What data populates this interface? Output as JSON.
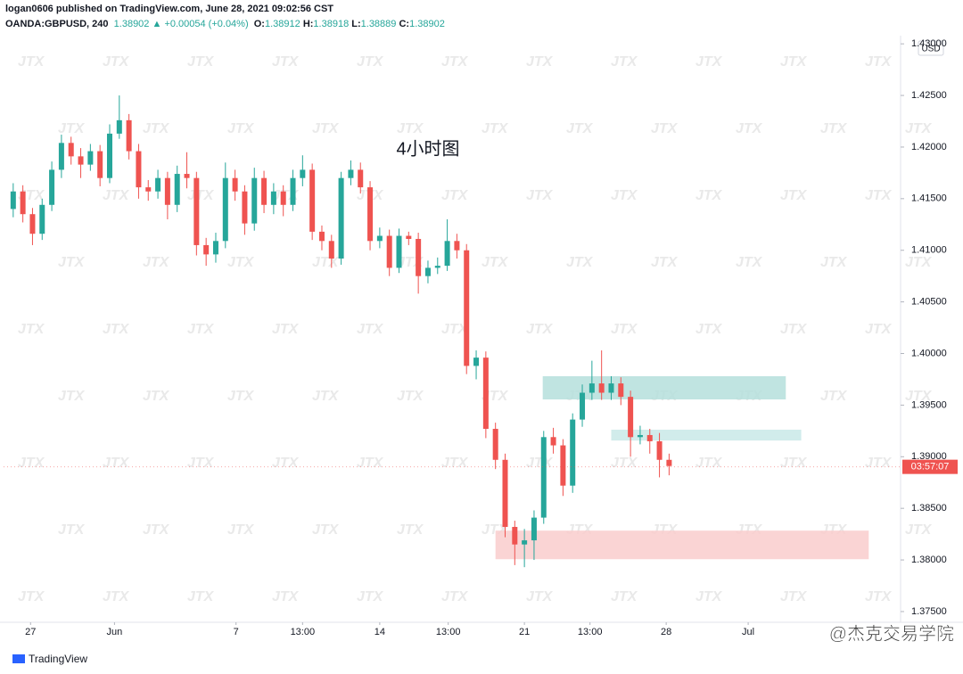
{
  "header": {
    "publisher": "logan0606 published on TradingView.com, June 28, 2021 09:02:56 CST",
    "symbol": "OANDA:GBPUSD, 240",
    "last": "1.38902",
    "change": "+0.00054 (+0.04%)",
    "open_label": "O:",
    "open": "1.38912",
    "high_label": "H:",
    "high": "1.38918",
    "low_label": "L:",
    "low": "1.38889",
    "close_label": "C:",
    "close": "1.38902"
  },
  "chart_data": {
    "type": "candlestick",
    "annotation": "4小时图",
    "currency": "USD",
    "watermark": "JTX",
    "up_color": "#26a69a",
    "down_color": "#ef5350",
    "xlim": [
      -1,
      92
    ],
    "xticks": [
      {
        "value": 1.8,
        "label": "27"
      },
      {
        "value": 10.5,
        "label": "Jun"
      },
      {
        "value": 23.1,
        "label": "7"
      },
      {
        "value": 30,
        "label": "13:00"
      },
      {
        "value": 38,
        "label": "14"
      },
      {
        "value": 45.1,
        "label": "13:00"
      },
      {
        "value": 53,
        "label": "21"
      },
      {
        "value": 59.8,
        "label": "13:00"
      },
      {
        "value": 67.7,
        "label": "28"
      },
      {
        "value": 76.2,
        "label": "Jul"
      }
    ],
    "ylim": [
      1.37396,
      1.43036
    ],
    "yticks": [
      {
        "value": 1.375,
        "label": "1.37500"
      },
      {
        "value": 1.38,
        "label": "1.38000"
      },
      {
        "value": 1.385,
        "label": "1.38500"
      },
      {
        "value": 1.39,
        "label": "1.39000"
      },
      {
        "value": 1.395,
        "label": "1.39500"
      },
      {
        "value": 1.4,
        "label": "1.40000"
      },
      {
        "value": 1.405,
        "label": "1.40500"
      },
      {
        "value": 1.41,
        "label": "1.41000"
      },
      {
        "value": 1.415,
        "label": "1.41500"
      },
      {
        "value": 1.42,
        "label": "1.42000"
      },
      {
        "value": 1.425,
        "label": "1.42500"
      },
      {
        "value": 1.43,
        "label": "1.43000"
      }
    ],
    "open": [
      1.414,
      1.4157,
      1.4135,
      1.4116,
      1.4144,
      1.4178,
      1.4204,
      1.4191,
      1.4183,
      1.4196,
      1.417,
      1.4213,
      1.4226,
      1.4196,
      1.4161,
      1.4157,
      1.417,
      1.4144,
      1.4174,
      1.417,
      1.4105,
      1.4096,
      1.4109,
      1.417,
      1.4157,
      1.4126,
      1.417,
      1.4144,
      1.4157,
      1.4144,
      1.417,
      1.4178,
      1.4118,
      1.4109,
      1.4092,
      1.417,
      1.4178,
      1.4161,
      1.4109,
      1.4114,
      1.4083,
      1.4114,
      1.4111,
      1.4075,
      1.4083,
      1.4085,
      1.4109,
      1.41,
      1.3988,
      1.3996,
      1.3927,
      1.3897,
      1.3832,
      1.3815,
      1.3819,
      1.3841,
      1.3919,
      1.3911,
      1.3872,
      1.3936,
      1.3962,
      1.3971,
      1.3962,
      1.3971,
      1.3958,
      1.3919,
      1.3921,
      1.3915,
      1.3897
    ],
    "high": [
      1.4165,
      1.4163,
      1.4141,
      1.415,
      1.4186,
      1.4212,
      1.421,
      1.4199,
      1.4203,
      1.4202,
      1.4222,
      1.425,
      1.4232,
      1.4203,
      1.4168,
      1.4178,
      1.4176,
      1.4182,
      1.4195,
      1.4176,
      1.4112,
      1.4117,
      1.4185,
      1.4178,
      1.4163,
      1.418,
      1.4177,
      1.4165,
      1.4163,
      1.4178,
      1.4192,
      1.4184,
      1.4124,
      1.4115,
      1.4176,
      1.4187,
      1.4185,
      1.4167,
      1.4122,
      1.412,
      1.4121,
      1.4118,
      1.4117,
      1.409,
      1.4093,
      1.413,
      1.4116,
      1.4106,
      1.4003,
      1.4002,
      1.3933,
      1.3903,
      1.3838,
      1.383,
      1.3848,
      1.3925,
      1.3928,
      1.3917,
      1.3942,
      1.397,
      1.3993,
      1.4003,
      1.3978,
      1.3977,
      1.3964,
      1.393,
      1.3927,
      1.3923,
      1.3903
    ],
    "low": [
      1.4132,
      1.4127,
      1.4105,
      1.411,
      1.4138,
      1.417,
      1.4183,
      1.417,
      1.4177,
      1.4162,
      1.4165,
      1.4208,
      1.4188,
      1.415,
      1.4148,
      1.415,
      1.413,
      1.4137,
      1.416,
      1.4095,
      1.4085,
      1.4088,
      1.4102,
      1.4148,
      1.4115,
      1.4119,
      1.4136,
      1.4135,
      1.4133,
      1.4138,
      1.4162,
      1.411,
      1.41,
      1.4083,
      1.4086,
      1.4163,
      1.4155,
      1.41,
      1.4102,
      1.4075,
      1.4078,
      1.4105,
      1.4058,
      1.4068,
      1.4077,
      1.408,
      1.4092,
      1.398,
      1.3975,
      1.3918,
      1.3888,
      1.3822,
      1.3795,
      1.3793,
      1.38,
      1.3835,
      1.3903,
      1.3862,
      1.3865,
      1.3929,
      1.3955,
      1.3955,
      1.3955,
      1.395,
      1.39,
      1.3912,
      1.3903,
      1.388,
      1.3882
    ],
    "close": [
      1.4157,
      1.4135,
      1.4116,
      1.4144,
      1.4178,
      1.4204,
      1.4191,
      1.4183,
      1.4196,
      1.417,
      1.4213,
      1.4226,
      1.4196,
      1.4161,
      1.4157,
      1.417,
      1.4144,
      1.4174,
      1.417,
      1.4105,
      1.4096,
      1.4109,
      1.417,
      1.4157,
      1.4126,
      1.417,
      1.4144,
      1.4157,
      1.4144,
      1.417,
      1.4178,
      1.4118,
      1.4109,
      1.4092,
      1.417,
      1.4178,
      1.4161,
      1.4109,
      1.4114,
      1.4083,
      1.4114,
      1.4111,
      1.4075,
      1.4083,
      1.4085,
      1.4109,
      1.41,
      1.3988,
      1.3996,
      1.3927,
      1.3897,
      1.3832,
      1.3815,
      1.3819,
      1.3841,
      1.3919,
      1.3911,
      1.3872,
      1.3936,
      1.3962,
      1.3971,
      1.3962,
      1.3971,
      1.3958,
      1.3919,
      1.3921,
      1.3915,
      1.3897,
      1.3891
    ],
    "zones": [
      {
        "x": [
          54.9,
          80.1
        ],
        "y": [
          1.39555,
          1.3978
        ],
        "color": "#b5dfdc"
      },
      {
        "x": [
          62,
          81.7
        ],
        "y": [
          1.39157,
          1.39262
        ],
        "color": "#c9e9e7"
      },
      {
        "x": [
          50,
          88.7
        ],
        "y": [
          1.38007,
          1.38284
        ],
        "color": "#f9cccc"
      }
    ],
    "price_tag": {
      "value": 1.38902,
      "label": "03:57:07",
      "color": "#ef5350"
    }
  },
  "footer": {
    "logo": "TradingView",
    "watermark": "@杰克交易学院"
  }
}
